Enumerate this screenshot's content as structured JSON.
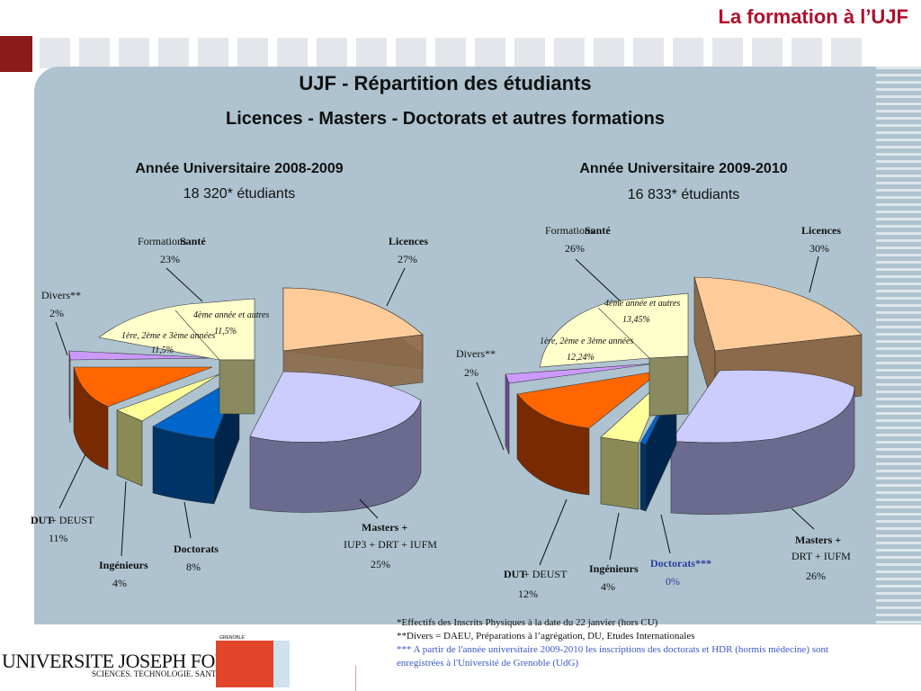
{
  "header": {
    "title": "La formation à l’UJF"
  },
  "main": {
    "title": "UJF - Répartition des étudiants",
    "subtitle": "Licences - Masters - Doctorats et autres formations"
  },
  "chart_data": [
    {
      "type": "pie",
      "title": "Année Universitaire 2008-2009",
      "subtitle": "18 320* étudiants",
      "slices": [
        {
          "name": "Licences",
          "value": 27,
          "value_label": "27%",
          "color": "#ffcc99"
        },
        {
          "name": "Masters + IUP3 + DRT + IUFM",
          "value": 25,
          "value_label": "25%",
          "color": "#ccccff"
        },
        {
          "name": "Doctorats",
          "value": 8,
          "value_label": "8%",
          "color": "#0066cc"
        },
        {
          "name": "Ingénieurs",
          "value": 4,
          "value_label": "4%",
          "color": "#ffff99"
        },
        {
          "name": "DUT + DEUST",
          "value": 11,
          "value_label": "11%",
          "color": "#ff6600"
        },
        {
          "name": "Divers**",
          "value": 2,
          "value_label": "2%",
          "color": "#cc99ff"
        },
        {
          "name": "Formations Santé",
          "value": 23,
          "value_label": "23%",
          "color": "#ffffcc",
          "sub": [
            {
              "name": "1ère, 2ème e 3ème années",
              "value_label": "11,5%"
            },
            {
              "name": "4ème année et autres",
              "value_label": "11,5%"
            }
          ]
        }
      ]
    },
    {
      "type": "pie",
      "title": "Année Universitaire 2009-2010",
      "subtitle": "16 833* étudiants",
      "slices": [
        {
          "name": "Licences",
          "value": 30,
          "value_label": "30%",
          "color": "#ffcc99"
        },
        {
          "name": "Masters + DRT + IUFM",
          "value": 26,
          "value_label": "26%",
          "color": "#ccccff"
        },
        {
          "name": "Doctorats***",
          "value": 0,
          "value_label": "0%",
          "color": "#0066cc"
        },
        {
          "name": "Ingénieurs",
          "value": 4,
          "value_label": "4%",
          "color": "#ffff99"
        },
        {
          "name": "DUT + DEUST",
          "value": 12,
          "value_label": "12%",
          "color": "#ff6600"
        },
        {
          "name": "Divers**",
          "value": 2,
          "value_label": "2%",
          "color": "#cc99ff"
        },
        {
          "name": "Formations Santé",
          "value": 26,
          "value_label": "26%",
          "color": "#ffffcc",
          "sub": [
            {
              "name": "1ère, 2ème e 3ème années",
              "value_label": "12,24%"
            },
            {
              "name": "4ème année et autres",
              "value_label": "13,45%"
            }
          ]
        }
      ]
    }
  ],
  "labels": {
    "left": {
      "formations": "Formations",
      "sante": "Santé",
      "sante_pct": "23%",
      "licences": "Licences",
      "licences_pct": "27%",
      "divers": "Divers**",
      "divers_pct": "2%",
      "sub1": "1ère, 2ème e 3ème années",
      "sub1_pct": "11,5%",
      "sub2": "4ème année et autres",
      "sub2_pct": "11,5%",
      "dut": "DUT",
      "dut_rest": "+ DEUST",
      "dut_pct": "11%",
      "ing": "Ingénieurs",
      "ing_pct": "4%",
      "doc": "Doctorats",
      "doc_pct": "8%",
      "masters": "Masters +",
      "masters_rest": "IUP3 + DRT + IUFM",
      "masters_pct": "25%"
    },
    "right": {
      "formations": "Formations",
      "sante": "Santé",
      "sante_pct": "26%",
      "licences": "Licences",
      "licences_pct": "30%",
      "divers": "Divers**",
      "divers_pct": "2%",
      "sub1": "1ère, 2ème e 3ème années",
      "sub1_pct": "12,24%",
      "sub2": "4ème année et autres",
      "sub2_pct": "13,45%",
      "dut": "DUT",
      "dut_rest": "+ DEUST",
      "dut_pct": "12%",
      "ing": "Ingénieurs",
      "ing_pct": "4%",
      "doc": "Doctorats***",
      "doc_pct": "0%",
      "masters": "Masters +",
      "masters_rest": "DRT + IUFM",
      "masters_pct": "26%"
    }
  },
  "footnotes": {
    "line1": "*Effectifs des Inscrits Physiques à la date du 22 janvier (hors CU)",
    "line2": "**Divers = DAEU, Préparations à l’agrégation, DU, Etudes Internationales",
    "line3": "*** A partir de l'année universitaire 2009-2010 les inscriptions des doctorats et HDR (hormis médecine) sont enregistrées à l'Université de Grenoble (UdG)"
  },
  "logo": {
    "name": "UNIVERSITE JOSEPH FOURIER",
    "tagline": "SCIENCES. TECHNOLOGIE. SANTÉ",
    "top": "GRENOBLE"
  }
}
